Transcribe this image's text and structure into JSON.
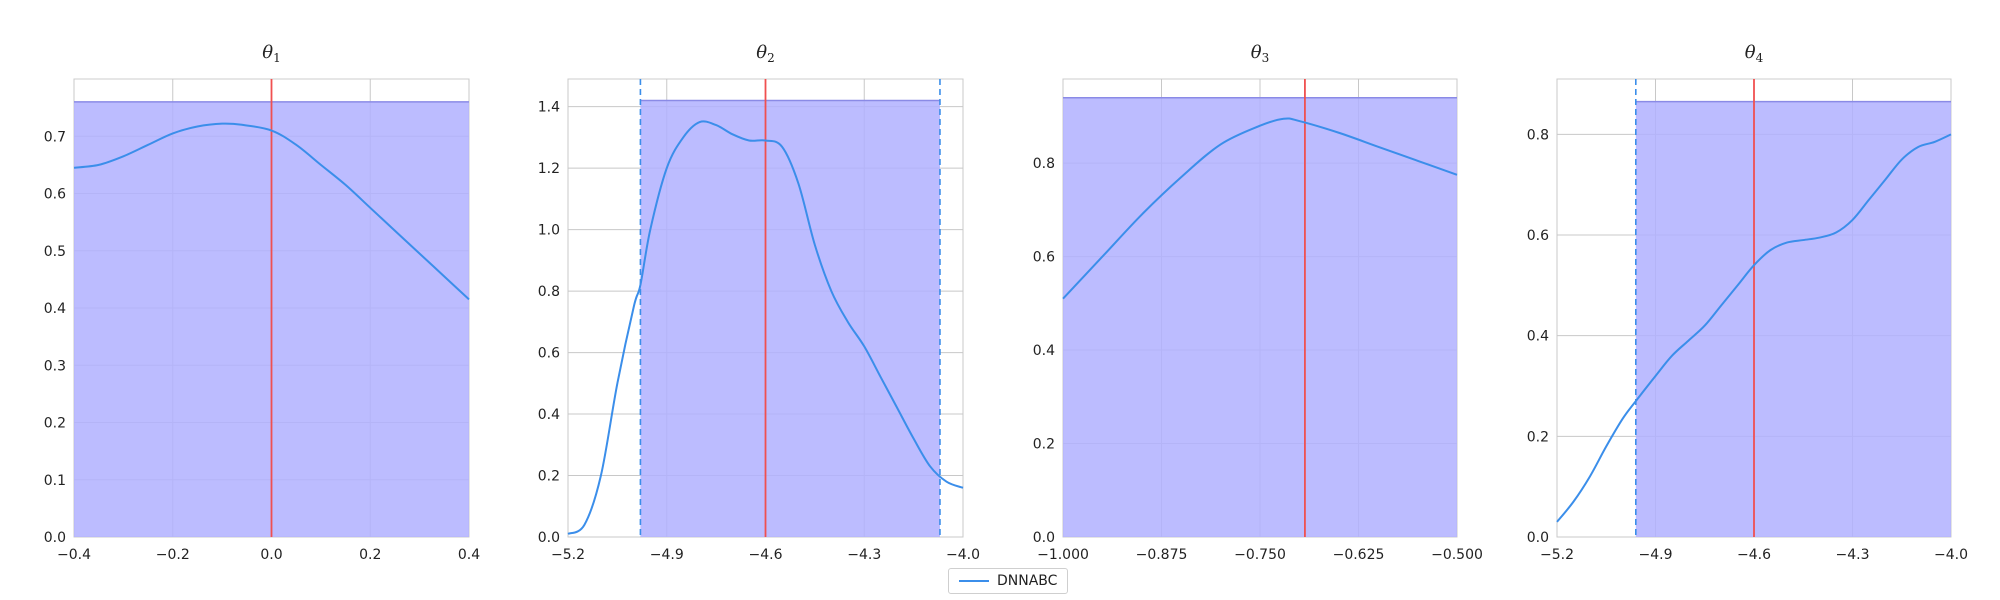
{
  "chart_data": [
    {
      "type": "line",
      "title": "θ",
      "title_subscript": "1",
      "xlim": [
        -0.4,
        0.4
      ],
      "ylim": [
        0,
        0.8
      ],
      "xticks": [
        "-0.4",
        "-0.2",
        "0.0",
        "0.2",
        "0.4"
      ],
      "xtick_values": [
        -0.4,
        -0.2,
        0.0,
        0.2,
        0.4
      ],
      "yticks": [
        "0.0",
        "0.1",
        "0.2",
        "0.3",
        "0.4",
        "0.5",
        "0.6",
        "0.7"
      ],
      "ytick_values": [
        0,
        0.1,
        0.2,
        0.3,
        0.4,
        0.5,
        0.6,
        0.7
      ],
      "shade": {
        "x0": -0.4,
        "x1": 0.4,
        "top": 0.76
      },
      "dashed_lines": [],
      "true_value": 0.0,
      "density": {
        "x": [
          -0.4,
          -0.35,
          -0.3,
          -0.25,
          -0.2,
          -0.15,
          -0.1,
          -0.06,
          0.0,
          0.05,
          0.1,
          0.15,
          0.2,
          0.25,
          0.3,
          0.35,
          0.4
        ],
        "y": [
          0.645,
          0.65,
          0.665,
          0.685,
          0.705,
          0.717,
          0.722,
          0.72,
          0.71,
          0.685,
          0.65,
          0.615,
          0.575,
          0.535,
          0.495,
          0.455,
          0.415
        ]
      },
      "grid": true
    },
    {
      "type": "line",
      "title": "θ",
      "title_subscript": "2",
      "xlim": [
        -5.2,
        -4.0
      ],
      "ylim": [
        0,
        1.49
      ],
      "xticks": [
        "-5.2",
        "-4.9",
        "-4.6",
        "-4.3",
        "-4.0"
      ],
      "xtick_values": [
        -5.2,
        -4.9,
        -4.6,
        -4.3,
        -4.0
      ],
      "yticks": [
        "0.0",
        "0.2",
        "0.4",
        "0.6",
        "0.8",
        "1.0",
        "1.2",
        "1.4"
      ],
      "ytick_values": [
        0,
        0.2,
        0.4,
        0.6,
        0.8,
        1.0,
        1.2,
        1.4
      ],
      "shade": {
        "x0": -4.98,
        "x1": -4.07,
        "top": 1.42
      },
      "dashed_lines": [
        -4.98,
        -4.07
      ],
      "true_value": -4.6,
      "density": {
        "x": [
          -5.2,
          -5.15,
          -5.1,
          -5.05,
          -5.0,
          -4.98,
          -4.95,
          -4.9,
          -4.85,
          -4.8,
          -4.75,
          -4.7,
          -4.65,
          -4.6,
          -4.55,
          -4.5,
          -4.45,
          -4.4,
          -4.35,
          -4.3,
          -4.25,
          -4.2,
          -4.15,
          -4.1,
          -4.05,
          -4.0
        ],
        "y": [
          0.01,
          0.04,
          0.2,
          0.5,
          0.75,
          0.82,
          1.0,
          1.2,
          1.3,
          1.35,
          1.34,
          1.31,
          1.29,
          1.29,
          1.27,
          1.15,
          0.95,
          0.8,
          0.7,
          0.62,
          0.52,
          0.42,
          0.32,
          0.23,
          0.18,
          0.16
        ]
      },
      "grid": true
    },
    {
      "type": "line",
      "title": "θ",
      "title_subscript": "3",
      "xlim": [
        -1.0,
        -0.5
      ],
      "ylim": [
        0,
        0.98
      ],
      "xticks": [
        "-1.000",
        "-0.875",
        "-0.750",
        "-0.625",
        "-0.500"
      ],
      "xtick_values": [
        -1.0,
        -0.875,
        -0.75,
        -0.625,
        -0.5
      ],
      "yticks": [
        "0.0",
        "0.2",
        "0.4",
        "0.6",
        "0.8"
      ],
      "ytick_values": [
        0,
        0.2,
        0.4,
        0.6,
        0.8
      ],
      "shade": {
        "x0": -1.0,
        "x1": -0.5,
        "top": 0.94
      },
      "dashed_lines": [],
      "true_value": -0.693,
      "density": {
        "x": [
          -1.0,
          -0.95,
          -0.9,
          -0.85,
          -0.8,
          -0.75,
          -0.72,
          -0.7,
          -0.65,
          -0.6,
          -0.55,
          -0.5
        ],
        "y": [
          0.51,
          0.6,
          0.69,
          0.77,
          0.84,
          0.88,
          0.895,
          0.89,
          0.865,
          0.835,
          0.805,
          0.775
        ]
      },
      "grid": true
    },
    {
      "type": "line",
      "title": "θ",
      "title_subscript": "4",
      "xlim": [
        -5.2,
        -4.0
      ],
      "ylim": [
        0,
        0.91
      ],
      "xticks": [
        "-5.2",
        "-4.9",
        "-4.6",
        "-4.3",
        "-4.0"
      ],
      "xtick_values": [
        -5.2,
        -4.9,
        -4.6,
        -4.3,
        -4.0
      ],
      "yticks": [
        "0.0",
        "0.2",
        "0.4",
        "0.6",
        "0.8"
      ],
      "ytick_values": [
        0,
        0.2,
        0.4,
        0.6,
        0.8
      ],
      "shade": {
        "x0": -4.96,
        "x1": -4.0,
        "top": 0.865
      },
      "dashed_lines": [
        -4.96
      ],
      "true_value": -4.6,
      "density": {
        "x": [
          -5.2,
          -5.15,
          -5.1,
          -5.05,
          -5.0,
          -4.96,
          -4.9,
          -4.85,
          -4.8,
          -4.75,
          -4.7,
          -4.65,
          -4.6,
          -4.55,
          -4.5,
          -4.45,
          -4.4,
          -4.35,
          -4.3,
          -4.25,
          -4.2,
          -4.15,
          -4.1,
          -4.05,
          -4.0
        ],
        "y": [
          0.03,
          0.07,
          0.12,
          0.18,
          0.235,
          0.27,
          0.32,
          0.36,
          0.39,
          0.42,
          0.46,
          0.5,
          0.54,
          0.57,
          0.585,
          0.59,
          0.595,
          0.605,
          0.63,
          0.67,
          0.71,
          0.75,
          0.775,
          0.785,
          0.8
        ]
      },
      "grid": true
    }
  ],
  "legend": {
    "label": "DNNABC",
    "color": "#3b8eea"
  },
  "colors": {
    "density": "#3b8eea",
    "true_value": "#f05050",
    "shade": "#b0b0ff",
    "grid": "#c8c8c8",
    "spine": "#cccccc"
  }
}
